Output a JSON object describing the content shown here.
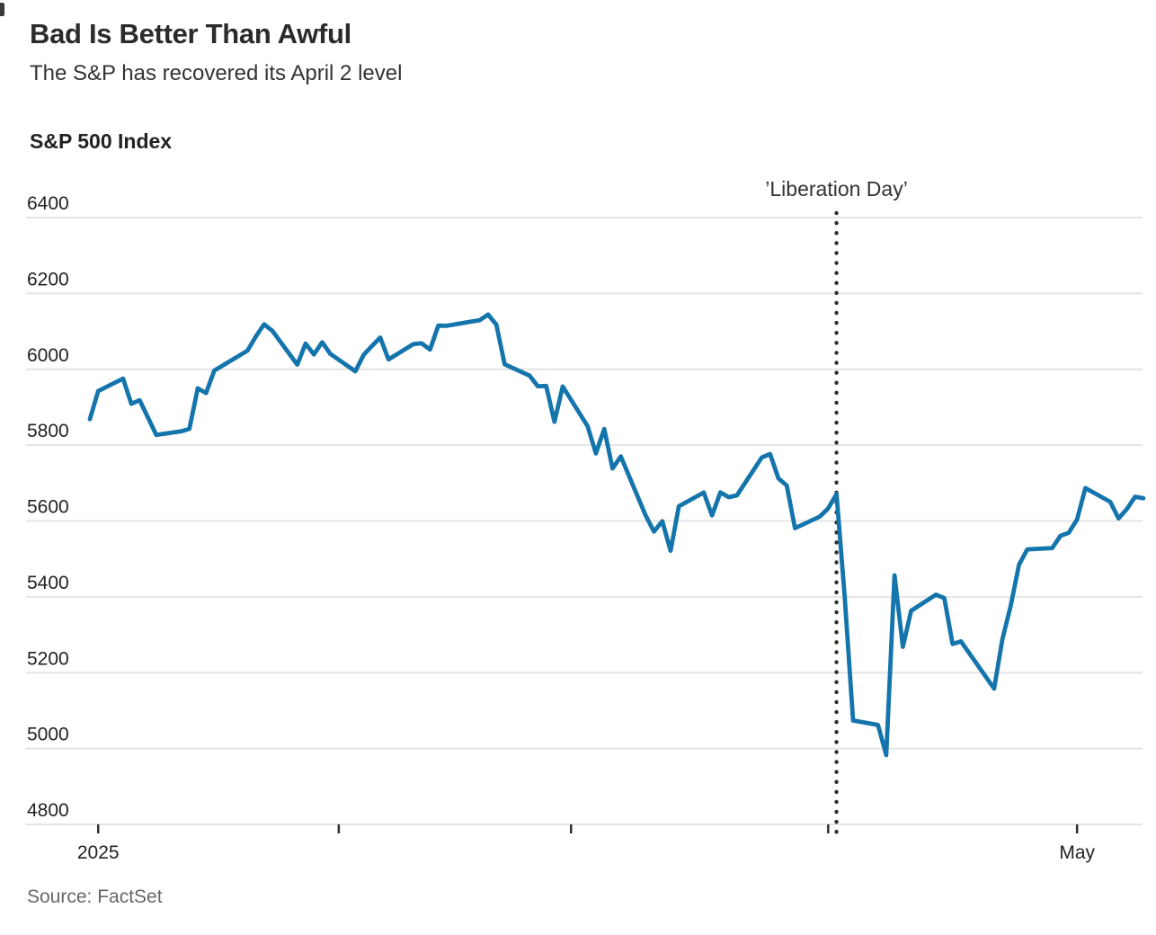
{
  "header": {
    "title": "Bad Is Better Than Awful",
    "subtitle": "The S&P has recovered its April 2 level",
    "series_label": "S&P 500 Index"
  },
  "footer": {
    "source": "Source: FactSet"
  },
  "colors": {
    "line": "#1474ac",
    "grid": "#e4e4e4",
    "axis_text": "#222222",
    "tick": "#2e2e2e",
    "annotation_dots": "#2e2e2e",
    "title": "#2b2b2b",
    "subtitle": "#333333",
    "source": "#666666"
  },
  "chart_data": {
    "type": "line",
    "title": "S&P 500 Index",
    "xlabel": "",
    "ylabel": "",
    "ylim": [
      4800,
      6400
    ],
    "y_ticks": [
      4800,
      5000,
      5200,
      5400,
      5600,
      5800,
      6000,
      6200,
      6400
    ],
    "grid": "horizontal",
    "legend_position": "none",
    "x_ticks": [
      {
        "date": "2025-01-03",
        "label": "2025"
      },
      {
        "date": "2025-02-01",
        "label": ""
      },
      {
        "date": "2025-03-01",
        "label": ""
      },
      {
        "date": "2025-04-01",
        "label": ""
      },
      {
        "date": "2025-05-01",
        "label": "May"
      }
    ],
    "annotation": {
      "label": "’Liberation Day’",
      "date": "2025-04-02"
    },
    "series": [
      {
        "name": "S&P 500 Index",
        "dates": [
          "2025-01-02",
          "2025-01-03",
          "2025-01-06",
          "2025-01-07",
          "2025-01-08",
          "2025-01-10",
          "2025-01-13",
          "2025-01-14",
          "2025-01-15",
          "2025-01-16",
          "2025-01-17",
          "2025-01-21",
          "2025-01-22",
          "2025-01-23",
          "2025-01-24",
          "2025-01-27",
          "2025-01-28",
          "2025-01-29",
          "2025-01-30",
          "2025-01-31",
          "2025-02-03",
          "2025-02-04",
          "2025-02-05",
          "2025-02-06",
          "2025-02-07",
          "2025-02-10",
          "2025-02-11",
          "2025-02-12",
          "2025-02-13",
          "2025-02-14",
          "2025-02-18",
          "2025-02-19",
          "2025-02-20",
          "2025-02-21",
          "2025-02-24",
          "2025-02-25",
          "2025-02-26",
          "2025-02-27",
          "2025-02-28",
          "2025-03-03",
          "2025-03-04",
          "2025-03-05",
          "2025-03-06",
          "2025-03-07",
          "2025-03-10",
          "2025-03-11",
          "2025-03-12",
          "2025-03-13",
          "2025-03-14",
          "2025-03-17",
          "2025-03-18",
          "2025-03-19",
          "2025-03-20",
          "2025-03-21",
          "2025-03-24",
          "2025-03-25",
          "2025-03-26",
          "2025-03-27",
          "2025-03-28",
          "2025-03-31",
          "2025-04-01",
          "2025-04-02",
          "2025-04-03",
          "2025-04-04",
          "2025-04-07",
          "2025-04-08",
          "2025-04-09",
          "2025-04-10",
          "2025-04-11",
          "2025-04-14",
          "2025-04-15",
          "2025-04-16",
          "2025-04-17",
          "2025-04-21",
          "2025-04-22",
          "2025-04-23",
          "2025-04-24",
          "2025-04-25",
          "2025-04-28",
          "2025-04-29",
          "2025-04-30",
          "2025-05-01",
          "2025-05-02",
          "2025-05-05",
          "2025-05-06",
          "2025-05-07",
          "2025-05-08",
          "2025-05-09"
        ],
        "values": [
          5868.55,
          5942.47,
          5975.38,
          5909.03,
          5918.25,
          5827.04,
          5836.22,
          5842.91,
          5949.91,
          5937.34,
          5996.66,
          6049.24,
          6086.37,
          6118.71,
          6101.24,
          6012.28,
          6067.7,
          6039.31,
          6071.17,
          6040.53,
          5994.57,
          6037.88,
          6061.48,
          6083.57,
          6025.99,
          6066.44,
          6068.5,
          6051.97,
          6115.07,
          6114.63,
          6129.58,
          6144.15,
          6117.52,
          6013.13,
          5983.25,
          5955.25,
          5956.06,
          5861.57,
          5954.5,
          5849.72,
          5778.15,
          5842.63,
          5738.52,
          5770.2,
          5614.56,
          5572.07,
          5599.3,
          5521.52,
          5638.94,
          5675.12,
          5614.66,
          5675.29,
          5662.89,
          5667.56,
          5767.57,
          5776.65,
          5712.2,
          5693.31,
          5580.94,
          5611.85,
          5633.07,
          5670.97,
          5396.52,
          5074.08,
          5062.25,
          4982.77,
          5456.9,
          5268.05,
          5363.36,
          5405.97,
          5396.63,
          5275.7,
          5282.7,
          5158.2,
          5287.76,
          5375.86,
          5484.77,
          5525.21,
          5528.75,
          5560.83,
          5569.06,
          5604.14,
          5686.67,
          5650.38,
          5606.91,
          5631.28,
          5663.94,
          5659.91
        ]
      }
    ]
  }
}
